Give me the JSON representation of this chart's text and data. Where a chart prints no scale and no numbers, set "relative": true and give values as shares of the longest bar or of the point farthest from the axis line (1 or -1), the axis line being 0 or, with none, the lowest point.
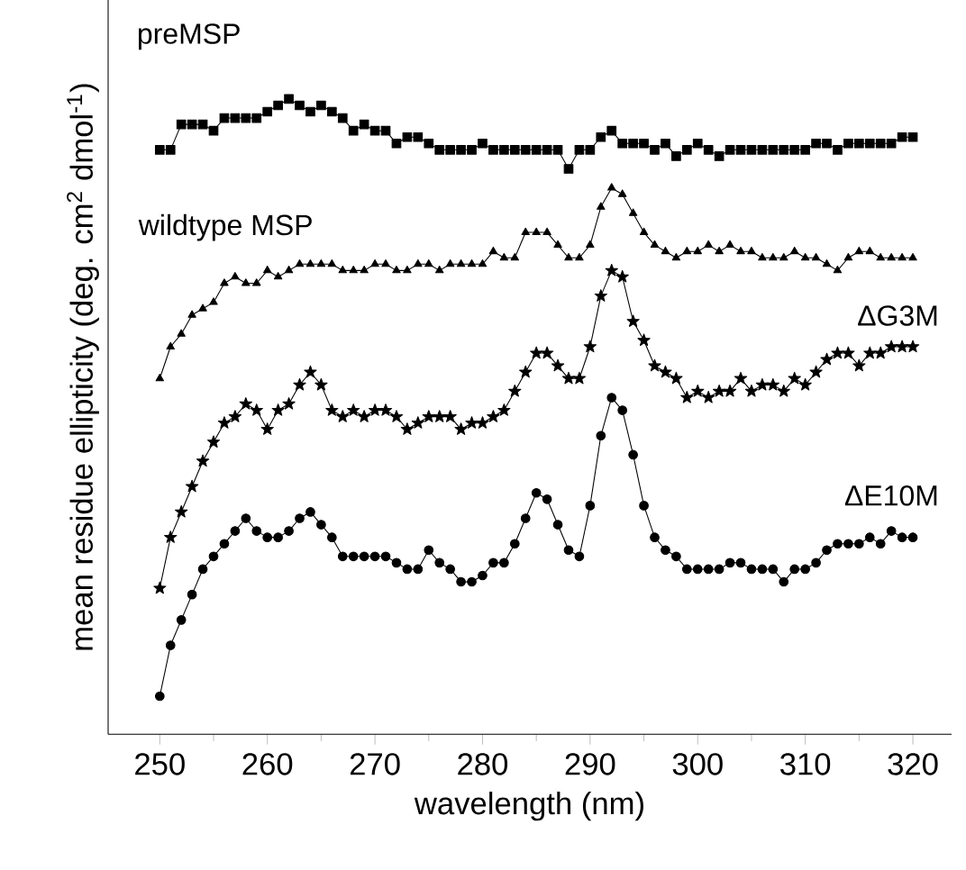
{
  "chart_data": {
    "type": "line",
    "relative": true,
    "xlabel": "wavelength (nm)",
    "ylabel": "mean residue ellipticity (deg. cm$^{2}$ dmol$^{-1}$)",
    "xlim": [
      245.2,
      323.6
    ],
    "xticks": [
      250,
      260,
      270,
      280,
      290,
      300,
      310,
      320
    ],
    "grid": false,
    "legend": false,
    "line_style": "solid",
    "x": [
      250,
      251,
      252,
      253,
      254,
      255,
      256,
      257,
      258,
      259,
      260,
      261,
      262,
      263,
      264,
      265,
      266,
      267,
      268,
      269,
      270,
      271,
      272,
      273,
      274,
      275,
      276,
      277,
      278,
      279,
      280,
      281,
      282,
      283,
      284,
      285,
      286,
      287,
      288,
      289,
      290,
      291,
      292,
      293,
      294,
      295,
      296,
      297,
      298,
      299,
      300,
      301,
      302,
      303,
      304,
      305,
      306,
      307,
      308,
      309,
      310,
      311,
      312,
      313,
      314,
      315,
      316,
      317,
      318,
      319,
      320
    ],
    "series": [
      {
        "name": "preMSP",
        "color": "#000000",
        "marker": "square",
        "values": [
          0.92,
          0.92,
          0.96,
          0.96,
          0.96,
          0.95,
          0.97,
          0.97,
          0.97,
          0.97,
          0.98,
          0.99,
          1.0,
          0.99,
          0.98,
          0.99,
          0.98,
          0.97,
          0.95,
          0.96,
          0.95,
          0.95,
          0.93,
          0.94,
          0.94,
          0.93,
          0.92,
          0.92,
          0.92,
          0.92,
          0.93,
          0.92,
          0.92,
          0.92,
          0.92,
          0.92,
          0.92,
          0.92,
          0.89,
          0.92,
          0.92,
          0.94,
          0.95,
          0.93,
          0.93,
          0.93,
          0.92,
          0.93,
          0.91,
          0.92,
          0.93,
          0.92,
          0.91,
          0.92,
          0.92,
          0.92,
          0.92,
          0.92,
          0.92,
          0.92,
          0.92,
          0.93,
          0.93,
          0.92,
          0.93,
          0.93,
          0.93,
          0.93,
          0.93,
          0.94,
          0.94
        ]
      },
      {
        "name": "wildtype MSP",
        "color": "#000000",
        "marker": "triangle",
        "values": [
          0.56,
          0.61,
          0.63,
          0.66,
          0.67,
          0.68,
          0.71,
          0.72,
          0.71,
          0.71,
          0.73,
          0.72,
          0.73,
          0.74,
          0.74,
          0.74,
          0.74,
          0.73,
          0.73,
          0.73,
          0.74,
          0.74,
          0.73,
          0.73,
          0.74,
          0.74,
          0.73,
          0.74,
          0.74,
          0.74,
          0.74,
          0.76,
          0.75,
          0.75,
          0.79,
          0.79,
          0.79,
          0.77,
          0.75,
          0.75,
          0.77,
          0.83,
          0.86,
          0.85,
          0.82,
          0.79,
          0.77,
          0.76,
          0.75,
          0.76,
          0.76,
          0.77,
          0.76,
          0.77,
          0.76,
          0.76,
          0.75,
          0.75,
          0.75,
          0.76,
          0.75,
          0.75,
          0.74,
          0.73,
          0.75,
          0.76,
          0.76,
          0.75,
          0.75,
          0.75,
          0.75
        ]
      },
      {
        "name": "ΔG3M",
        "color": "#000000",
        "marker": "star",
        "values": [
          0.23,
          0.31,
          0.35,
          0.39,
          0.43,
          0.46,
          0.49,
          0.5,
          0.52,
          0.51,
          0.48,
          0.51,
          0.52,
          0.55,
          0.57,
          0.55,
          0.51,
          0.5,
          0.51,
          0.5,
          0.51,
          0.51,
          0.5,
          0.48,
          0.49,
          0.5,
          0.5,
          0.5,
          0.48,
          0.49,
          0.49,
          0.5,
          0.51,
          0.54,
          0.57,
          0.6,
          0.6,
          0.58,
          0.56,
          0.56,
          0.61,
          0.69,
          0.73,
          0.72,
          0.65,
          0.62,
          0.58,
          0.57,
          0.56,
          0.53,
          0.54,
          0.53,
          0.54,
          0.54,
          0.56,
          0.54,
          0.55,
          0.55,
          0.54,
          0.56,
          0.55,
          0.57,
          0.59,
          0.6,
          0.6,
          0.58,
          0.6,
          0.6,
          0.61,
          0.61,
          0.61
        ]
      },
      {
        "name": "ΔE10M",
        "color": "#000000",
        "marker": "circle",
        "values": [
          0.06,
          0.14,
          0.18,
          0.22,
          0.26,
          0.28,
          0.3,
          0.32,
          0.34,
          0.32,
          0.31,
          0.31,
          0.32,
          0.34,
          0.35,
          0.33,
          0.31,
          0.28,
          0.28,
          0.28,
          0.28,
          0.28,
          0.27,
          0.26,
          0.26,
          0.29,
          0.27,
          0.26,
          0.24,
          0.24,
          0.25,
          0.27,
          0.27,
          0.3,
          0.34,
          0.38,
          0.37,
          0.33,
          0.29,
          0.28,
          0.36,
          0.47,
          0.53,
          0.51,
          0.44,
          0.36,
          0.31,
          0.29,
          0.28,
          0.26,
          0.26,
          0.26,
          0.26,
          0.27,
          0.27,
          0.26,
          0.26,
          0.26,
          0.24,
          0.26,
          0.26,
          0.27,
          0.29,
          0.3,
          0.3,
          0.3,
          0.31,
          0.3,
          0.32,
          0.31,
          0.31
        ]
      }
    ]
  }
}
